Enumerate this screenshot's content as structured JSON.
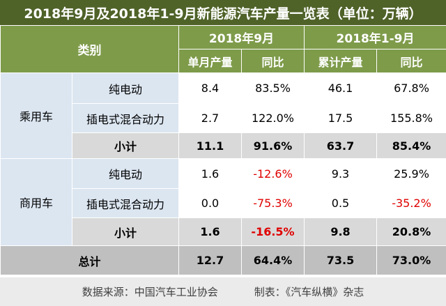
{
  "title": "2018年9月及2018年1-9月新能源汽车产量一览表（单位：万辆）",
  "header": {
    "category": "类别",
    "period1": "2018年9月",
    "period2": "2018年1-9月",
    "col_monthly": "单月产量",
    "col_yoy1": "同比",
    "col_cumulative": "累计产量",
    "col_yoy2": "同比"
  },
  "groups": [
    {
      "name": "乘用车",
      "rows": [
        {
          "type": "纯电动",
          "monthly": "8.4",
          "yoy1": "83.5%",
          "cumulative": "46.1",
          "yoy2": "67.8%"
        },
        {
          "type": "插电式混合动力",
          "monthly": "2.7",
          "yoy1": "122.0%",
          "cumulative": "17.5",
          "yoy2": "155.8%"
        }
      ],
      "subtotal": {
        "label": "小计",
        "monthly": "11.1",
        "yoy1": "91.6%",
        "cumulative": "63.7",
        "yoy2": "85.4%"
      }
    },
    {
      "name": "商用车",
      "rows": [
        {
          "type": "纯电动",
          "monthly": "1.6",
          "yoy1": "-12.6%",
          "cumulative": "9.3",
          "yoy2": "25.9%"
        },
        {
          "type": "插电式混合动力",
          "monthly": "0.0",
          "yoy1": "-75.3%",
          "cumulative": "0.5",
          "yoy2": "-35.2%"
        }
      ],
      "subtotal": {
        "label": "小计",
        "monthly": "1.6",
        "yoy1": "-16.5%",
        "cumulative": "9.8",
        "yoy2": "20.8%"
      }
    }
  ],
  "total": {
    "label": "总计",
    "monthly": "12.7",
    "yoy1": "64.4%",
    "cumulative": "73.5",
    "yoy2": "73.0%"
  },
  "footer": {
    "source": "数据来源：中国汽车工业协会",
    "maker": "制表：《汽车纵横》杂志"
  },
  "colors": {
    "title_bg": "#4f6228",
    "header_bg": "#7e9b4a",
    "category_bg": "#dce6f1",
    "subtotal_bg": "#d9d9d9",
    "total_bg": "#bfbfbf",
    "negative": "#e00000"
  }
}
